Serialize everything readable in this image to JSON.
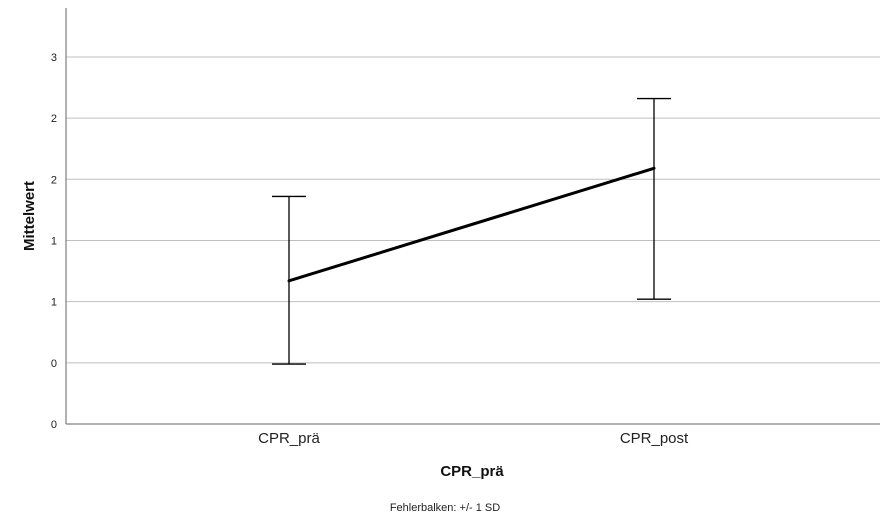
{
  "chart_data": {
    "type": "line",
    "xlabel": "CPR_prä",
    "ylabel": "Mittelwert",
    "categories": [
      "CPR_prä",
      "CPR_post"
    ],
    "y_tick_labels": [
      "0",
      "0",
      "1",
      "1",
      "2",
      "2",
      "3"
    ],
    "ylim": [
      0,
      3.4
    ],
    "grid": true,
    "series": [
      {
        "values": [
          1.17,
          2.09
        ],
        "error_low": [
          0.49,
          1.02
        ],
        "error_high": [
          1.86,
          2.66
        ]
      }
    ],
    "footnote": "Fehlerbalken: +/- 1 SD"
  },
  "colors": {
    "line": "#000000",
    "grid": "#bfbfbf",
    "axis": "#666666"
  }
}
